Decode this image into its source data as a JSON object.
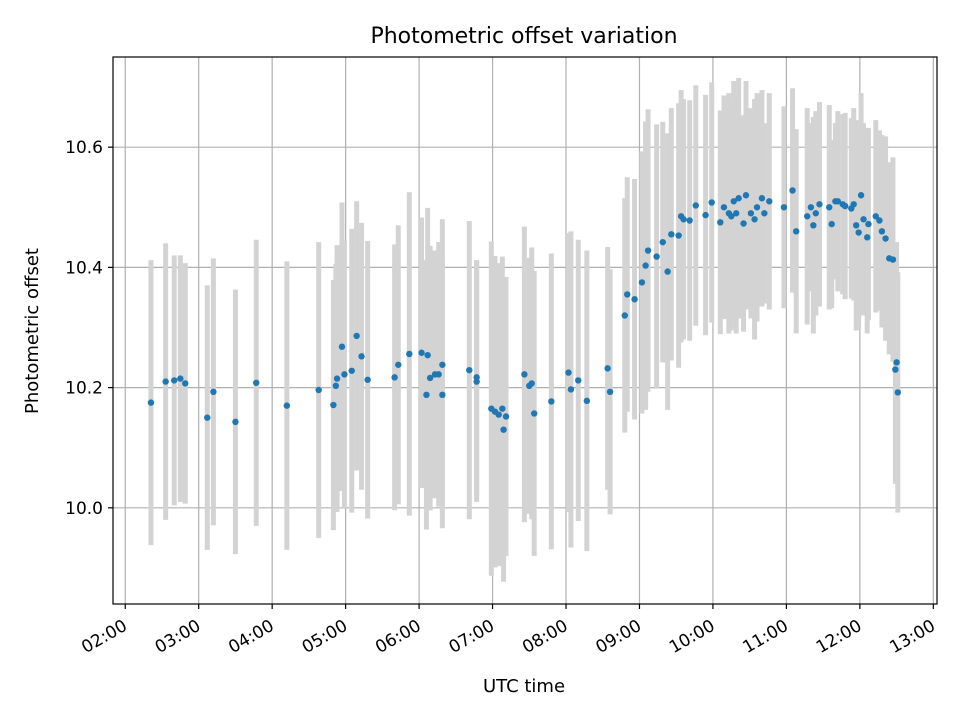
{
  "chart_data": {
    "type": "scatter",
    "title": "Photometric offset variation",
    "xlabel": "UTC time",
    "ylabel": "Photometric offset",
    "x_ticks": [
      "02:00",
      "03:00",
      "04:00",
      "05:00",
      "06:00",
      "07:00",
      "08:00",
      "09:00",
      "10:00",
      "11:00",
      "12:00",
      "13:00"
    ],
    "y_ticks": [
      "10.0",
      "10.2",
      "10.4",
      "10.6"
    ],
    "xlim": [
      "01:50",
      "13:03"
    ],
    "ylim": [
      9.84,
      10.75
    ],
    "grid": true,
    "colors": {
      "points": "#1f77b4",
      "errorbars": "#d3d3d3",
      "grid": "#b0b0b0"
    },
    "points": [
      [
        "02:21",
        10.175,
        0.237
      ],
      [
        "02:33",
        10.21,
        0.23
      ],
      [
        "02:40",
        10.212,
        0.208
      ],
      [
        "02:45",
        10.215,
        0.205
      ],
      [
        "02:49",
        10.207,
        0.2
      ],
      [
        "03:07",
        10.15,
        0.22
      ],
      [
        "03:12",
        10.193,
        0.222
      ],
      [
        "03:30",
        10.143,
        0.22
      ],
      [
        "03:47",
        10.208,
        0.238
      ],
      [
        "04:12",
        10.17,
        0.24
      ],
      [
        "04:38",
        10.196,
        0.246
      ],
      [
        "04:50",
        10.171,
        0.208
      ],
      [
        "04:52",
        10.203,
        0.203
      ],
      [
        "04:53",
        10.215,
        0.222
      ],
      [
        "04:57",
        10.268,
        0.24
      ],
      [
        "04:59",
        10.222,
        0.222
      ],
      [
        "05:05",
        10.228,
        0.236
      ],
      [
        "05:09",
        10.286,
        0.224
      ],
      [
        "05:13",
        10.252,
        0.222
      ],
      [
        "05:18",
        10.213,
        0.231
      ],
      [
        "05:40",
        10.217,
        0.221
      ],
      [
        "05:43",
        10.238,
        0.232
      ],
      [
        "05:52",
        10.256,
        0.269
      ],
      [
        "06:02",
        10.258,
        0.225
      ],
      [
        "06:06",
        10.188,
        0.224
      ],
      [
        "06:07",
        10.254,
        0.245
      ],
      [
        "06:09",
        10.216,
        0.22
      ],
      [
        "06:13",
        10.222,
        0.206
      ],
      [
        "06:16",
        10.222,
        0.22
      ],
      [
        "06:19",
        10.238,
        0.242
      ],
      [
        "06:19",
        10.188,
        0.222
      ],
      [
        "06:41",
        10.229,
        0.248
      ],
      [
        "06:47",
        10.217,
        0.195
      ],
      [
        "06:47",
        10.21,
        0.2
      ],
      [
        "06:59",
        10.165,
        0.278
      ],
      [
        "07:02",
        10.16,
        0.259
      ],
      [
        "07:05",
        10.155,
        0.252
      ],
      [
        "07:08",
        10.165,
        0.253
      ],
      [
        "07:09",
        10.13,
        0.253
      ],
      [
        "07:11",
        10.152,
        0.232
      ],
      [
        "07:26",
        10.222,
        0.246
      ],
      [
        "07:30",
        10.203,
        0.213
      ],
      [
        "07:32",
        10.207,
        0.226
      ],
      [
        "07:34",
        10.157,
        0.237
      ],
      [
        "07:48",
        10.177,
        0.246
      ],
      [
        "08:02",
        10.225,
        0.232
      ],
      [
        "08:04",
        10.197,
        0.263
      ],
      [
        "08:10",
        10.212,
        0.234
      ],
      [
        "08:17",
        10.178,
        0.25
      ],
      [
        "08:34",
        10.232,
        0.202
      ],
      [
        "08:36",
        10.193,
        0.204
      ],
      [
        "08:48",
        10.32,
        0.195
      ],
      [
        "08:50",
        10.355,
        0.195
      ],
      [
        "08:56",
        10.347,
        0.2
      ],
      [
        "09:02",
        10.375,
        0.218
      ],
      [
        "09:05",
        10.403,
        0.24
      ],
      [
        "09:07",
        10.428,
        0.235
      ],
      [
        "09:14",
        10.418,
        0.22
      ],
      [
        "09:19",
        10.442,
        0.2
      ],
      [
        "09:23",
        10.393,
        0.23
      ],
      [
        "09:26",
        10.455,
        0.21
      ],
      [
        "09:32",
        10.453,
        0.22
      ],
      [
        "09:34",
        10.485,
        0.21
      ],
      [
        "09:36",
        10.48,
        0.2
      ],
      [
        "09:41",
        10.478,
        0.2
      ],
      [
        "09:46",
        10.503,
        0.2
      ],
      [
        "09:54",
        10.487,
        0.2
      ],
      [
        "09:59",
        10.508,
        0.2
      ],
      [
        "10:06",
        10.475,
        0.186
      ],
      [
        "10:09",
        10.5,
        0.186
      ],
      [
        "10:13",
        10.49,
        0.2
      ],
      [
        "10:15",
        10.485,
        0.19
      ],
      [
        "10:17",
        10.51,
        0.2
      ],
      [
        "10:19",
        10.49,
        0.2
      ],
      [
        "10:21",
        10.515,
        0.2
      ],
      [
        "10:25",
        10.473,
        0.18
      ],
      [
        "10:27",
        10.52,
        0.19
      ],
      [
        "10:31",
        10.49,
        0.175
      ],
      [
        "10:34",
        10.48,
        0.2
      ],
      [
        "10:36",
        10.5,
        0.19
      ],
      [
        "10:40",
        10.515,
        0.18
      ],
      [
        "10:42",
        10.49,
        0.15
      ],
      [
        "10:46",
        10.51,
        0.18
      ],
      [
        "10:58",
        10.5,
        0.168
      ],
      [
        "11:05",
        10.528,
        0.17
      ],
      [
        "11:08",
        10.46,
        0.17
      ],
      [
        "11:17",
        10.485,
        0.18
      ],
      [
        "11:20",
        10.5,
        0.14
      ],
      [
        "11:22",
        10.47,
        0.18
      ],
      [
        "11:24",
        10.49,
        0.17
      ],
      [
        "11:27",
        10.505,
        0.17
      ],
      [
        "11:35",
        10.5,
        0.17
      ],
      [
        "11:37",
        10.472,
        0.14
      ],
      [
        "11:40",
        10.51,
        0.13
      ],
      [
        "11:42",
        10.51,
        0.15
      ],
      [
        "11:46",
        10.505,
        0.15
      ],
      [
        "11:48",
        10.502,
        0.155
      ],
      [
        "11:53",
        10.498,
        0.15
      ],
      [
        "11:55",
        10.505,
        0.16
      ],
      [
        "11:57",
        10.47,
        0.175
      ],
      [
        "11:59",
        10.458,
        0.16
      ],
      [
        "12:01",
        10.52,
        0.17
      ],
      [
        "12:03",
        10.48,
        0.16
      ],
      [
        "12:06",
        10.45,
        0.16
      ],
      [
        "12:07",
        10.472,
        0.16
      ],
      [
        "12:13",
        10.485,
        0.16
      ],
      [
        "12:16",
        10.478,
        0.15
      ],
      [
        "12:18",
        10.46,
        0.16
      ],
      [
        "12:21",
        10.448,
        0.17
      ],
      [
        "12:24",
        10.415,
        0.16
      ],
      [
        "12:27",
        10.413,
        0.17
      ],
      [
        "12:29",
        10.23,
        0.19
      ],
      [
        "12:30",
        10.242,
        0.2
      ],
      [
        "12:31",
        10.192,
        0.2
      ]
    ]
  }
}
